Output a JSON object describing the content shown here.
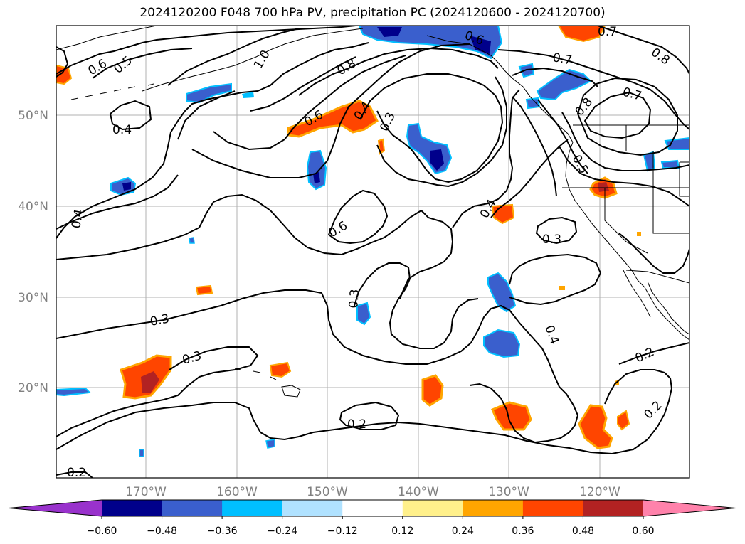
{
  "title": "2024120200 F048 700 hPa PV, precipitation PC (2024120600 - 2024120700)",
  "lon_ticks": [
    "170°W",
    "160°W",
    "150°W",
    "140°W",
    "130°W",
    "120°W"
  ],
  "lat_ticks": [
    "50°N",
    "40°N",
    "30°N",
    "20°N"
  ],
  "colorbar": {
    "labels": [
      "−0.60",
      "−0.48",
      "−0.36",
      "−0.24",
      "−0.12",
      "0.12",
      "0.24",
      "0.36",
      "0.48",
      "0.60"
    ],
    "colors": [
      "#9932cc",
      "#00008b",
      "#3a5fcd",
      "#00bfff",
      "#b0e2ff",
      "#ffffff",
      "#fff08b",
      "#ffa500",
      "#ff4500",
      "#b22222",
      "#ff82ab"
    ]
  },
  "contour_labels": [
    {
      "name": "label-0.6-nw",
      "text": "0.6"
    },
    {
      "name": "label-0.5-nw",
      "text": "0.5"
    },
    {
      "name": "label-1.0",
      "text": "1.0"
    },
    {
      "name": "label-0.8-center",
      "text": "0.8"
    },
    {
      "name": "label-0.6-top",
      "text": "0.6"
    },
    {
      "name": "label-0.7-top",
      "text": "0.7"
    },
    {
      "name": "label-0.7-mid",
      "text": "0.7"
    },
    {
      "name": "label-0.8-ne",
      "text": "0.8"
    },
    {
      "name": "label-0.7-ne",
      "text": "0.7"
    },
    {
      "name": "label-0.8-coast",
      "text": "0.8"
    },
    {
      "name": "label-0.5-coast",
      "text": "0.5"
    },
    {
      "name": "label-0.4-west",
      "text": "0.4"
    },
    {
      "name": "label-0.6-mid",
      "text": "0.6"
    },
    {
      "name": "label-0.4-mid",
      "text": "0.4"
    },
    {
      "name": "label-0.3-mid",
      "text": "0.3"
    },
    {
      "name": "label-0.4-left",
      "text": "0.4"
    },
    {
      "name": "label-0.6-lower",
      "text": "0.6"
    },
    {
      "name": "label-0.4-east",
      "text": "0.4"
    },
    {
      "name": "label-0.3-east",
      "text": "0.3"
    },
    {
      "name": "label-0.3-center",
      "text": "0.3"
    },
    {
      "name": "label-0.3-sw",
      "text": "0.3"
    },
    {
      "name": "label-0.3-south",
      "text": "0.3"
    },
    {
      "name": "label-0.4-se",
      "text": "0.4"
    },
    {
      "name": "label-0.2-se",
      "text": "0.2"
    },
    {
      "name": "label-0.2-se2",
      "text": "0.2"
    },
    {
      "name": "label-0.2-south",
      "text": "0.2"
    },
    {
      "name": "label-0.2-corner",
      "text": "0.2"
    }
  ]
}
